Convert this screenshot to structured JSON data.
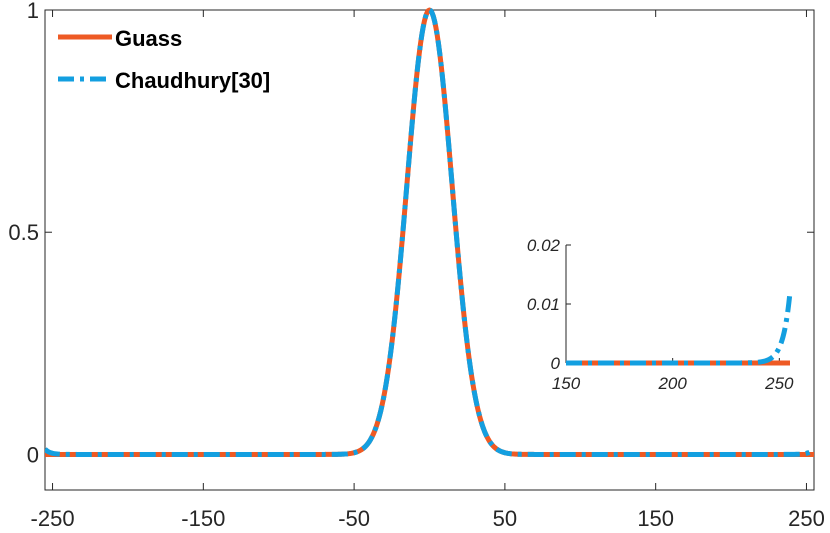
{
  "chart_data": [
    {
      "type": "line",
      "title": "",
      "xlabel": "",
      "ylabel": "",
      "xlim": [
        -255,
        255
      ],
      "ylim": [
        -0.08,
        1
      ],
      "xticks": [
        -250,
        -150,
        -50,
        50,
        150,
        250
      ],
      "xtick_labels": [
        "-250",
        "-150",
        "-50",
        "50",
        "150",
        "250"
      ],
      "yticks": [
        0,
        0.5,
        1
      ],
      "ytick_labels": [
        "0",
        "0.5",
        "1"
      ],
      "grid": false,
      "legend_position": "top-left",
      "series": [
        {
          "name": "Guass",
          "color": "#ee5a24",
          "style": "solid",
          "x": [
            -255,
            -50,
            -40,
            -35,
            -30,
            -25,
            -20,
            -15,
            -10,
            -5,
            0,
            5,
            10,
            15,
            20,
            25,
            30,
            35,
            40,
            50,
            255
          ],
          "y": [
            0,
            0,
            0.0002,
            0.002,
            0.011,
            0.043,
            0.135,
            0.325,
            0.607,
            0.882,
            1,
            0.882,
            0.607,
            0.325,
            0.135,
            0.043,
            0.011,
            0.002,
            0.0002,
            0,
            0
          ]
        },
        {
          "name": "Chaudhury[30]",
          "color": "#139fe0",
          "style": "dashdot",
          "x": [
            -255,
            -250,
            -240,
            -50,
            -40,
            -35,
            -30,
            -25,
            -20,
            -15,
            -10,
            -5,
            0,
            5,
            10,
            15,
            20,
            25,
            30,
            35,
            40,
            50,
            240,
            250,
            255
          ],
          "y": [
            0.012,
            0.004,
            0,
            0,
            0.0002,
            0.002,
            0.011,
            0.043,
            0.135,
            0.325,
            0.607,
            0.882,
            1,
            0.882,
            0.607,
            0.325,
            0.135,
            0.043,
            0.011,
            0.002,
            0.0002,
            0,
            0,
            0.004,
            0.012
          ]
        }
      ]
    },
    {
      "type": "line",
      "title": "",
      "xlabel": "",
      "ylabel": "",
      "xlim": [
        150,
        255
      ],
      "ylim": [
        0,
        0.02
      ],
      "xticks": [
        150,
        200,
        250
      ],
      "xtick_labels": [
        "150",
        "200",
        "250"
      ],
      "yticks": [
        0,
        0.01,
        0.02
      ],
      "ytick_labels": [
        "0",
        "0.01",
        "0.02"
      ],
      "grid": false,
      "series": [
        {
          "name": "Guass",
          "color": "#ee5a24",
          "style": "solid",
          "x": [
            150,
            255
          ],
          "y": [
            0,
            0
          ]
        },
        {
          "name": "Chaudhury[30]",
          "color": "#139fe0",
          "style": "dashdot",
          "x": [
            150,
            240,
            244,
            247,
            250,
            252,
            254,
            255
          ],
          "y": [
            0,
            0,
            0.0003,
            0.0012,
            0.003,
            0.006,
            0.0095,
            0.0115
          ]
        }
      ]
    }
  ]
}
